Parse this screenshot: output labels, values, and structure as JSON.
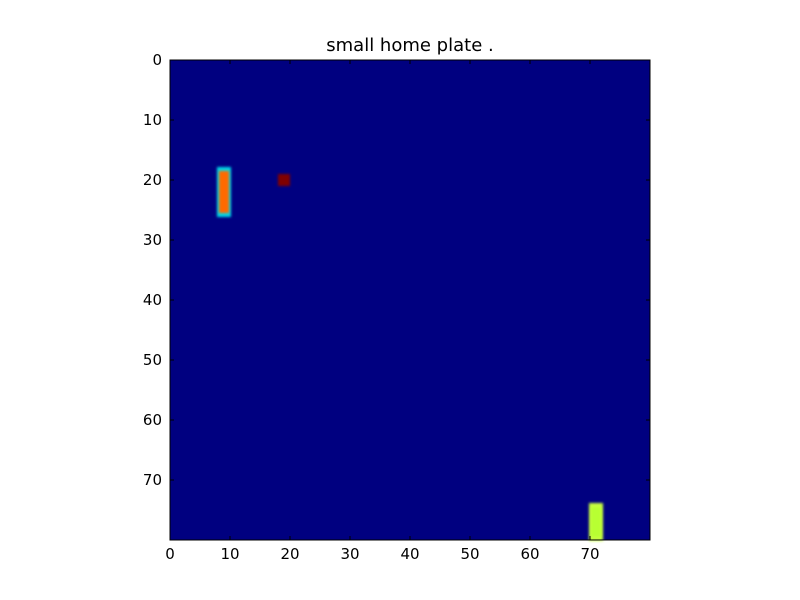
{
  "title": "small home plate .",
  "chart_data": {
    "type": "heatmap",
    "title": "small home plate .",
    "xlabel": "",
    "ylabel": "",
    "grid_size": [
      80,
      80
    ],
    "xlim": [
      0,
      80
    ],
    "ylim": [
      80,
      0
    ],
    "x_ticks": [
      "0",
      "10",
      "20",
      "30",
      "40",
      "50",
      "60",
      "70"
    ],
    "y_ticks": [
      "0",
      "10",
      "20",
      "30",
      "40",
      "50",
      "60",
      "70"
    ],
    "grid": false,
    "background_color": "#000080",
    "objects": [
      {
        "name": "left-paddle",
        "x": 9,
        "y_start": 18,
        "y_end": 26,
        "core_color": "#ff6a00",
        "edge_color": "#00d7e6"
      },
      {
        "name": "ball",
        "x": 19,
        "y": 20,
        "color": "#800000"
      },
      {
        "name": "right-paddle",
        "x": 71,
        "y_start": 74,
        "y_end": 80,
        "core_color": "#b8ff30",
        "edge_color": "#c8ff40"
      }
    ]
  }
}
